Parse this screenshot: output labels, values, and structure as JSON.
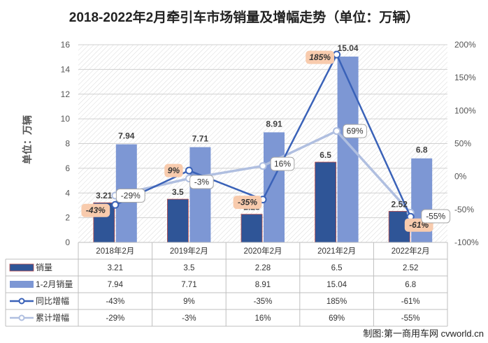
{
  "title": "2018-2022年2月牵引车市场销量及增幅走势（单位：万辆）",
  "ylabel": "单位：万辆",
  "credit": "制图:第一商用车网 cvworld.cn",
  "colors": {
    "bar_monthly": "#2f5597",
    "bar_ytd": "#7d97d4",
    "line_monthly": "#3a62b8",
    "line_ytd": "#b0bfe0",
    "neg_label_bg": "#f8cbad"
  },
  "chart_data": {
    "type": "bar",
    "categories": [
      "2018年2月",
      "2019年2月",
      "2020年2月",
      "2021年2月",
      "2022年2月"
    ],
    "y_left": {
      "min": 0,
      "max": 16,
      "ticks": [
        "0",
        "2",
        "4",
        "6",
        "8",
        "10",
        "12",
        "14",
        "16"
      ]
    },
    "y_right": {
      "min": -100,
      "max": 200,
      "ticks": [
        "-100%",
        "-50%",
        "0%",
        "50%",
        "100%",
        "150%",
        "200%"
      ]
    },
    "series": [
      {
        "name": "销量",
        "kind": "bar",
        "axis": "left",
        "values": [
          3.21,
          3.5,
          2.28,
          6.5,
          2.52
        ],
        "labels": [
          "3.21",
          "3.5",
          "2.28",
          "6.5",
          "2.52"
        ]
      },
      {
        "name": "1-2月销量",
        "kind": "bar",
        "axis": "left",
        "values": [
          7.94,
          7.71,
          8.91,
          15.04,
          6.8
        ],
        "labels": [
          "7.94",
          "7.71",
          "8.91",
          "15.04",
          "6.8"
        ]
      },
      {
        "name": "同比增幅",
        "kind": "line",
        "axis": "right",
        "values": [
          -43,
          9,
          -35,
          185,
          -61
        ],
        "labels": [
          "-43%",
          "9%",
          "-35%",
          "185%",
          "-61%"
        ]
      },
      {
        "name": "累计增幅",
        "kind": "line",
        "axis": "right",
        "values": [
          -29,
          -3,
          16,
          69,
          -55
        ],
        "labels": [
          "-29%",
          "-3%",
          "16%",
          "69%",
          "-55%"
        ]
      }
    ],
    "grid": true,
    "legend": "bottom-table"
  }
}
